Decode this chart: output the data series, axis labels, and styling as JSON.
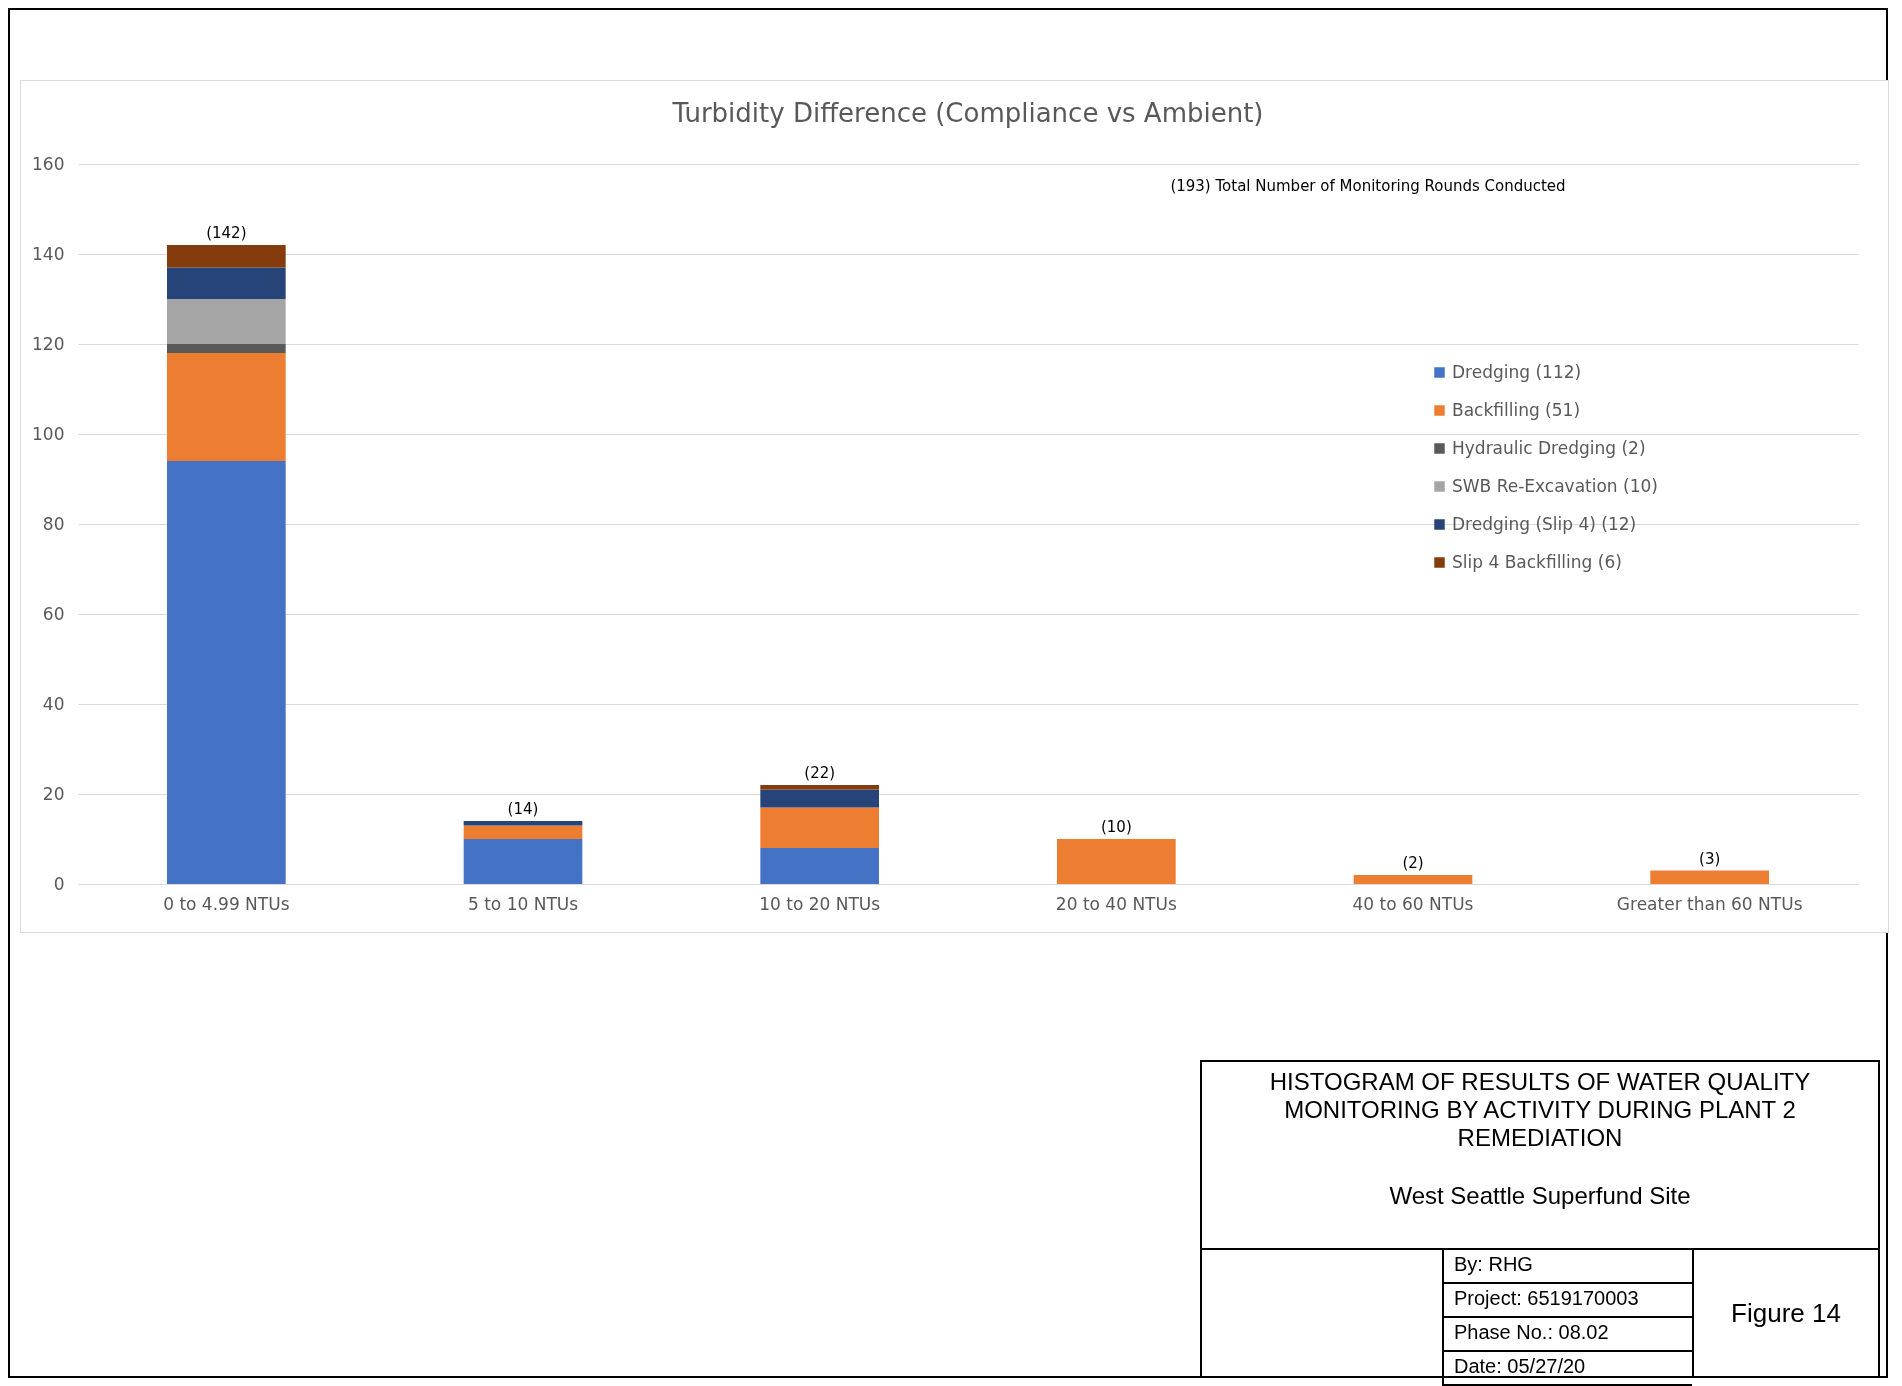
{
  "chart_data": {
    "type": "bar",
    "title": "Turbidity Difference (Compliance vs Ambient)",
    "categories": [
      "0 to 4.99 NTUs",
      "5 to 10 NTUs",
      "10 to 20 NTUs",
      "20 to 40 NTUs",
      "40 to 60 NTUs",
      "Greater than 60 NTUs"
    ],
    "stacked": true,
    "series": [
      {
        "name": "Dredging (112)",
        "color": "#4472c4",
        "values": [
          94,
          10,
          8,
          0,
          0,
          0
        ]
      },
      {
        "name": "Backfilling (51)",
        "color": "#ed7d31",
        "values": [
          24,
          3,
          9,
          10,
          2,
          3
        ]
      },
      {
        "name": "Hydraulic Dredging (2)",
        "color": "#595959",
        "values": [
          2,
          0,
          0,
          0,
          0,
          0
        ]
      },
      {
        "name": "SWB Re-Excavation (10)",
        "color": "#a5a5a5",
        "values": [
          10,
          0,
          0,
          0,
          0,
          0
        ]
      },
      {
        "name": "Dredging (Slip 4) (12)",
        "color": "#264478",
        "values": [
          7,
          1,
          4,
          0,
          0,
          0
        ]
      },
      {
        "name": "Slip 4 Backfilling (6)",
        "color": "#843c0c",
        "values": [
          5,
          0,
          1,
          0,
          0,
          0
        ]
      }
    ],
    "totals": [
      "(142)",
      "(14)",
      "(22)",
      "(10)",
      "(2)",
      "(3)"
    ],
    "ylim": [
      0,
      160
    ],
    "yticks": [
      0,
      20,
      40,
      60,
      80,
      100,
      120,
      140,
      160
    ],
    "grid": "y",
    "legend": "top right",
    "annotations": [
      "(193) Total Number of Monitoring Rounds Conducted",
      "HISTOGRAM OF RESULTS OF WATER QUALITY MONITORING BY ACTIVITY DURING PLANT 2 REMEDIATION",
      "West Seattle Superfund Site",
      "By: RHG",
      "Project: 6519170003",
      "Phase No.: 08.02",
      "Date: 05/27/20",
      "Figure 14"
    ]
  }
}
